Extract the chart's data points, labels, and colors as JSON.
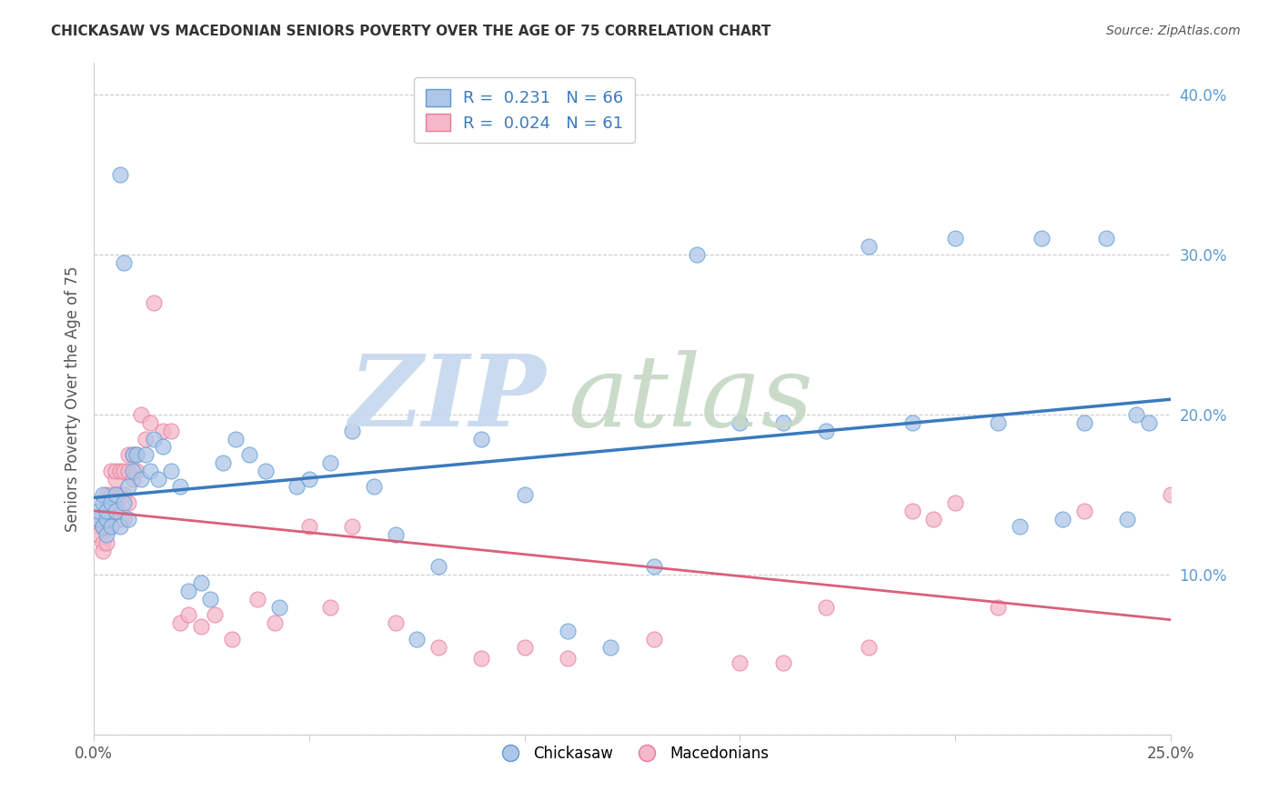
{
  "title": "CHICKASAW VS MACEDONIAN SENIORS POVERTY OVER THE AGE OF 75 CORRELATION CHART",
  "source": "Source: ZipAtlas.com",
  "ylabel": "Seniors Poverty Over the Age of 75",
  "xlim": [
    0.0,
    0.25
  ],
  "ylim": [
    0.0,
    0.42
  ],
  "xtick_positions": [
    0.0,
    0.05,
    0.1,
    0.15,
    0.2,
    0.25
  ],
  "xticklabels": [
    "0.0%",
    "",
    "",
    "",
    "",
    "25.0%"
  ],
  "ytick_positions": [
    0.0,
    0.1,
    0.2,
    0.3,
    0.4
  ],
  "yticklabels": [
    "",
    "10.0%",
    "20.0%",
    "30.0%",
    "40.0%"
  ],
  "chickasaw_R": 0.231,
  "chickasaw_N": 66,
  "macedonian_R": 0.024,
  "macedonian_N": 61,
  "chickasaw_color": "#aec6e8",
  "macedonian_color": "#f4b8c8",
  "chickasaw_edge_color": "#5b9bd5",
  "macedonian_edge_color": "#e87a9a",
  "chickasaw_line_color": "#3a7abf",
  "macedonian_line_color": "#d9607a",
  "watermark_zip_color": "#c5d8ee",
  "watermark_atlas_color": "#c5d8c5",
  "chickasaw_x": [
    0.001,
    0.001,
    0.002,
    0.002,
    0.002,
    0.003,
    0.003,
    0.003,
    0.004,
    0.004,
    0.005,
    0.005,
    0.006,
    0.006,
    0.007,
    0.007,
    0.008,
    0.008,
    0.009,
    0.009,
    0.01,
    0.011,
    0.012,
    0.013,
    0.014,
    0.015,
    0.016,
    0.018,
    0.02,
    0.022,
    0.025,
    0.027,
    0.03,
    0.033,
    0.036,
    0.04,
    0.043,
    0.047,
    0.05,
    0.055,
    0.06,
    0.065,
    0.07,
    0.075,
    0.08,
    0.09,
    0.1,
    0.11,
    0.12,
    0.13,
    0.14,
    0.15,
    0.16,
    0.17,
    0.18,
    0.19,
    0.2,
    0.21,
    0.215,
    0.22,
    0.225,
    0.23,
    0.235,
    0.24,
    0.242,
    0.245
  ],
  "chickasaw_y": [
    0.135,
    0.14,
    0.13,
    0.145,
    0.15,
    0.125,
    0.135,
    0.14,
    0.13,
    0.145,
    0.14,
    0.15,
    0.35,
    0.13,
    0.295,
    0.145,
    0.155,
    0.135,
    0.175,
    0.165,
    0.175,
    0.16,
    0.175,
    0.165,
    0.185,
    0.16,
    0.18,
    0.165,
    0.155,
    0.09,
    0.095,
    0.085,
    0.17,
    0.185,
    0.175,
    0.165,
    0.08,
    0.155,
    0.16,
    0.17,
    0.19,
    0.155,
    0.125,
    0.06,
    0.105,
    0.185,
    0.15,
    0.065,
    0.055,
    0.105,
    0.3,
    0.195,
    0.195,
    0.19,
    0.305,
    0.195,
    0.31,
    0.195,
    0.13,
    0.31,
    0.135,
    0.195,
    0.31,
    0.135,
    0.2,
    0.195
  ],
  "macedonian_x": [
    0.001,
    0.001,
    0.001,
    0.002,
    0.002,
    0.002,
    0.003,
    0.003,
    0.003,
    0.003,
    0.004,
    0.004,
    0.004,
    0.005,
    0.005,
    0.005,
    0.006,
    0.006,
    0.006,
    0.007,
    0.007,
    0.007,
    0.008,
    0.008,
    0.008,
    0.009,
    0.009,
    0.01,
    0.01,
    0.011,
    0.012,
    0.013,
    0.014,
    0.016,
    0.018,
    0.02,
    0.022,
    0.025,
    0.028,
    0.032,
    0.038,
    0.042,
    0.05,
    0.055,
    0.06,
    0.07,
    0.08,
    0.09,
    0.1,
    0.11,
    0.13,
    0.15,
    0.16,
    0.17,
    0.18,
    0.19,
    0.195,
    0.2,
    0.21,
    0.23,
    0.25
  ],
  "macedonian_y": [
    0.13,
    0.125,
    0.135,
    0.12,
    0.13,
    0.115,
    0.13,
    0.12,
    0.14,
    0.15,
    0.165,
    0.15,
    0.13,
    0.16,
    0.145,
    0.165,
    0.165,
    0.15,
    0.135,
    0.165,
    0.15,
    0.135,
    0.175,
    0.165,
    0.145,
    0.175,
    0.16,
    0.175,
    0.165,
    0.2,
    0.185,
    0.195,
    0.27,
    0.19,
    0.19,
    0.07,
    0.075,
    0.068,
    0.075,
    0.06,
    0.085,
    0.07,
    0.13,
    0.08,
    0.13,
    0.07,
    0.055,
    0.048,
    0.055,
    0.048,
    0.06,
    0.045,
    0.045,
    0.08,
    0.055,
    0.14,
    0.135,
    0.145,
    0.08,
    0.14,
    0.15
  ]
}
